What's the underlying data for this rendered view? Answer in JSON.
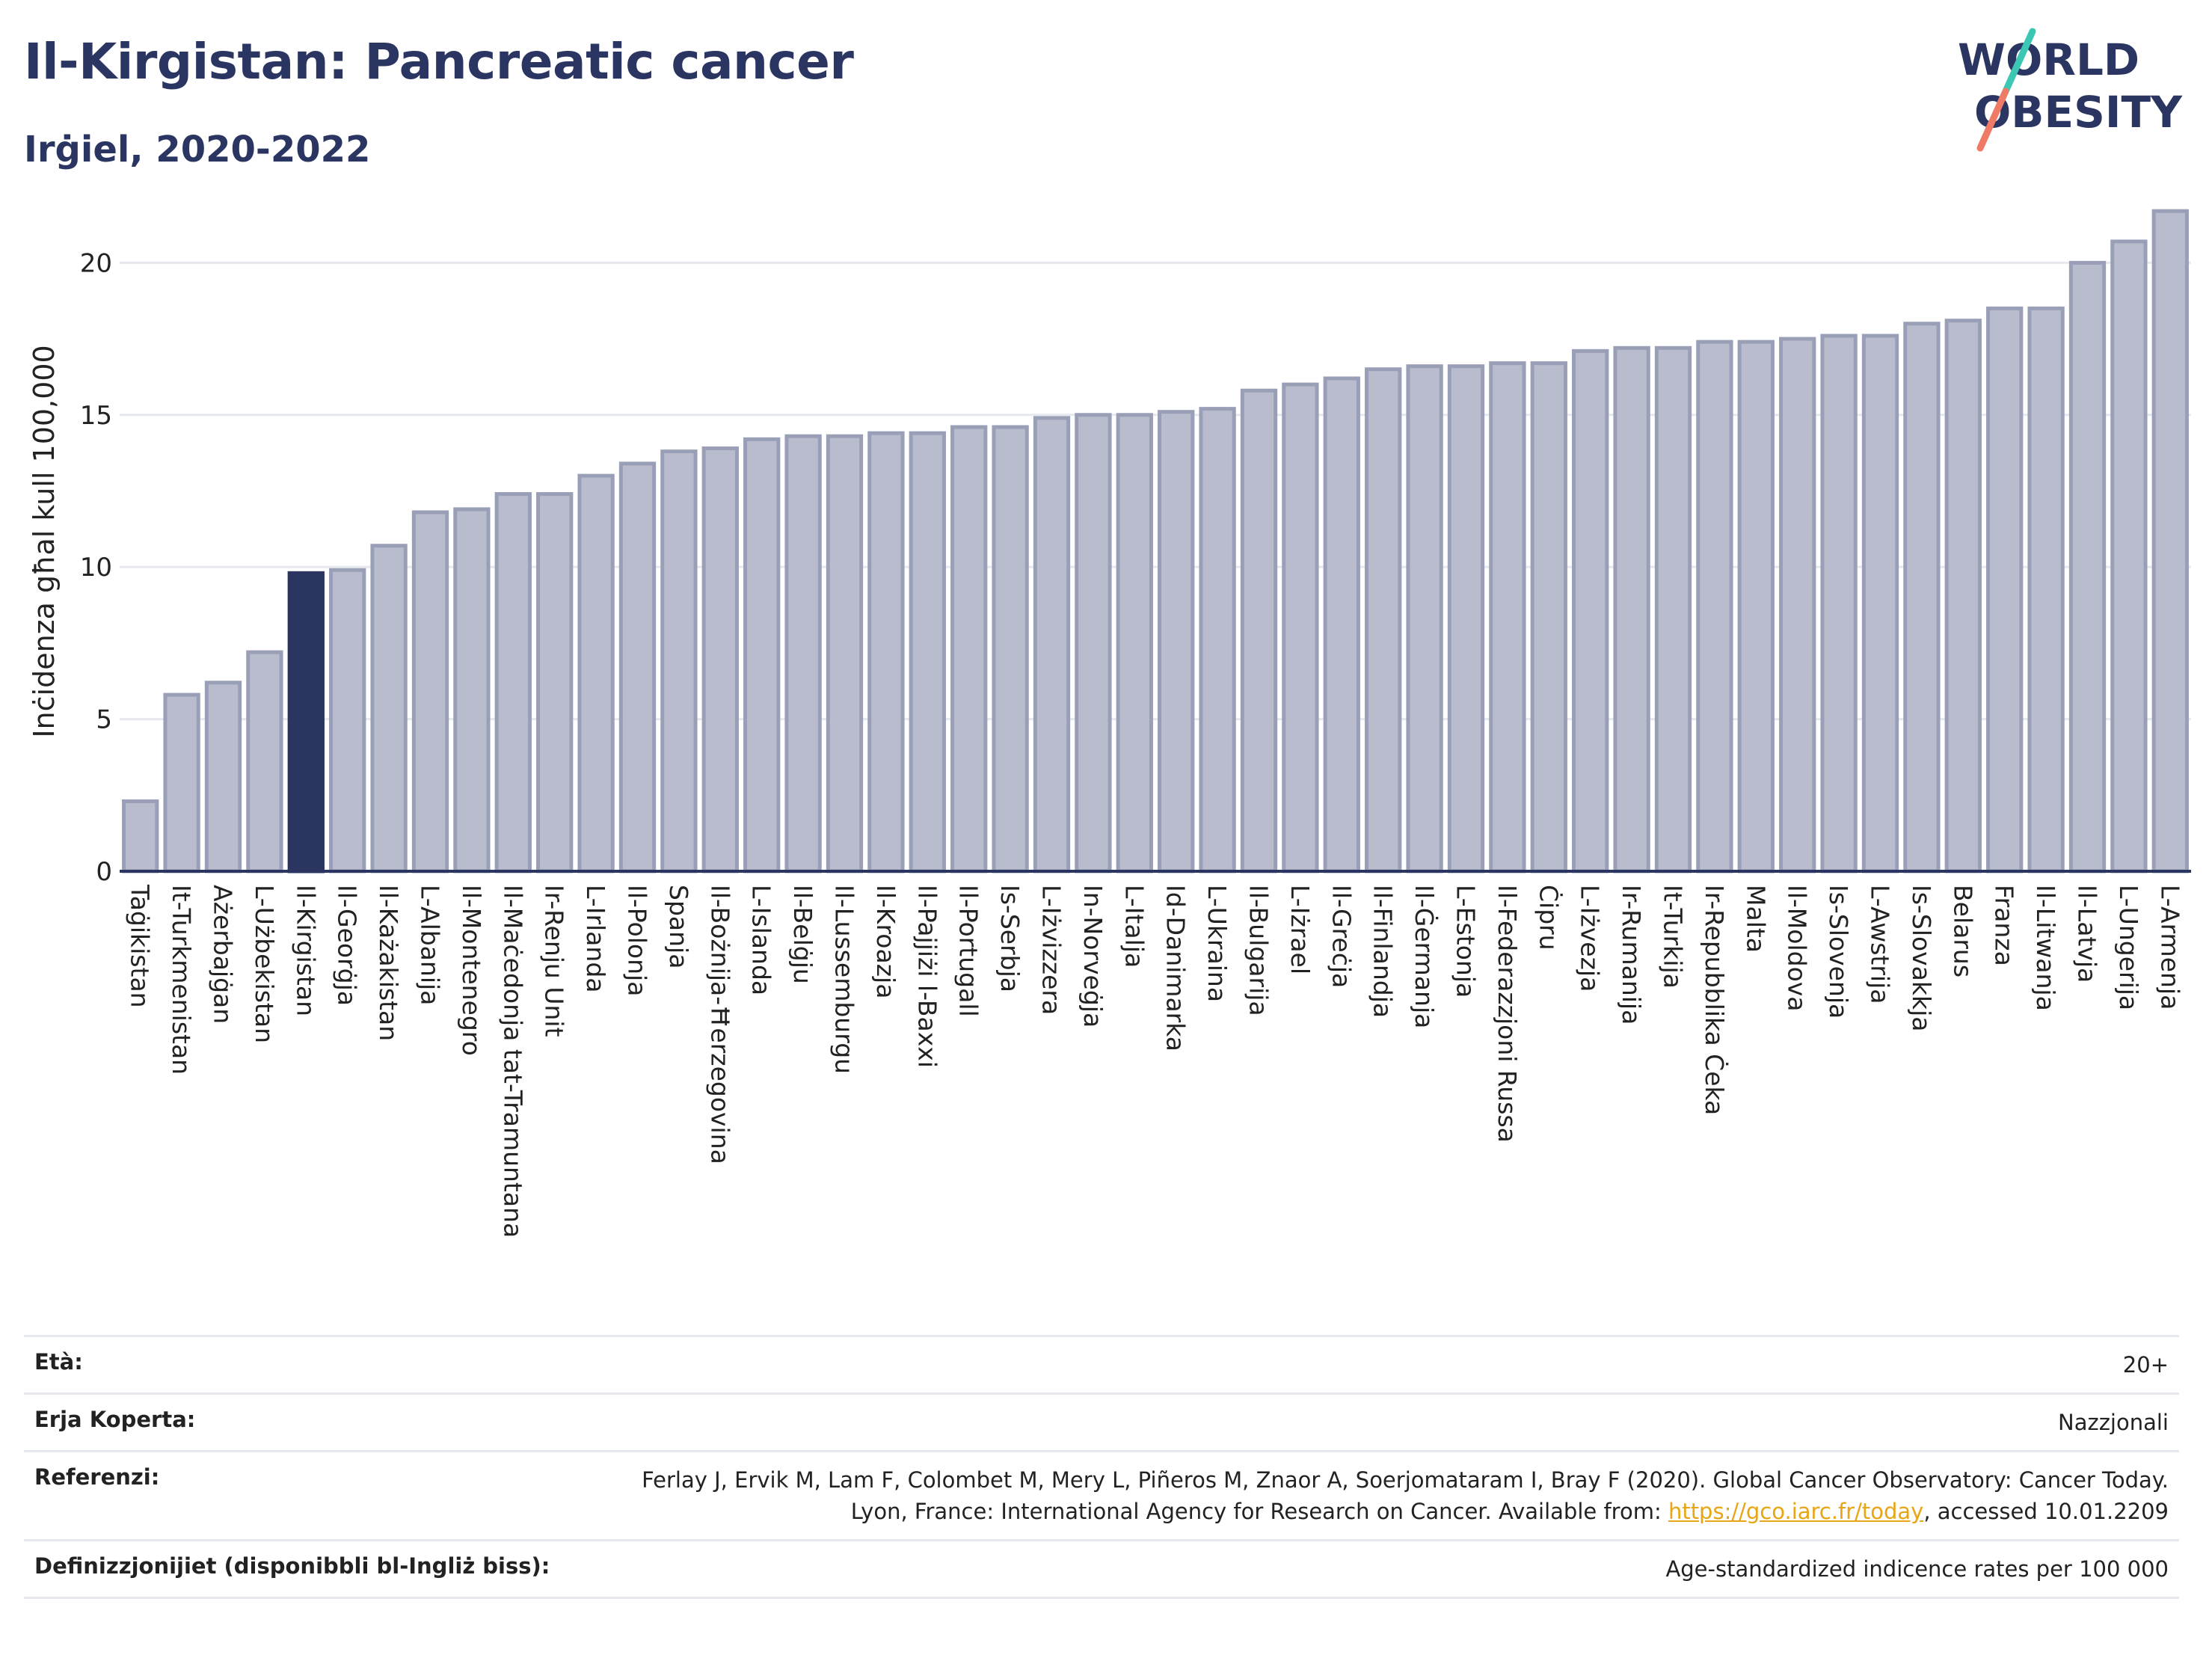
{
  "header": {
    "title": "Il-Kirgistan: Pancreatic cancer",
    "subtitle": "Irġiel, 2020-2022"
  },
  "logo": {
    "line1": "WORLD",
    "line2": "OBESITY"
  },
  "colors": {
    "highlight_bar": "#2a3561",
    "bar_fill": "#b9bccc",
    "bar_stroke": "#9a9fb8",
    "gridline": "#e6e8ef",
    "accent_teal": "#3cc7b4",
    "accent_coral": "#ef7b67",
    "link": "#e8a516"
  },
  "chart_data": {
    "type": "bar",
    "ylabel": "Inċidenza għal kull 100,000",
    "xlabel": "",
    "ylim": [
      0,
      22
    ],
    "yticks": [
      0,
      5,
      10,
      15,
      20
    ],
    "grid": true,
    "highlight": "Il-Kirgistan",
    "categories": [
      "Taġikistan",
      "It-Turkmenistan",
      "Ażerbajġan",
      "L-Użbekistan",
      "Il-Kirgistan",
      "Il-Georġja",
      "Il-Każakistan",
      "L-Albanija",
      "Il-Montenegro",
      "Il-Maċedonja tat-Tramuntana",
      "Ir-Renju Unit",
      "L-Irlanda",
      "Il-Polonja",
      "Spanja",
      "Il-Bożnija-Ħerzegovina",
      "L-Islanda",
      "Il-Belġju",
      "Il-Lussemburgu",
      "Il-Kroazja",
      "Il-Pajjiżi l-Baxxi",
      "Il-Portugall",
      "Is-Serbja",
      "L-Iżvizzera",
      "In-Norveġja",
      "L-Italja",
      "Id-Danimarka",
      "L-Ukraina",
      "Il-Bulgarija",
      "L-Iżrael",
      "Il-Greċja",
      "Il-Finlandja",
      "Il-Ġermanja",
      "L-Estonja",
      "Il-Federazzjoni Russa",
      "Ċipru",
      "L-Iżvezja",
      "Ir-Rumanija",
      "It-Turkija",
      "Ir-Repubblika Ċeka",
      "Malta",
      "Il-Moldova",
      "Is-Slovenja",
      "L-Awstrija",
      "Is-Slovakkja",
      "Belarus",
      "Franza",
      "Il-Litwanja",
      "Il-Latvja",
      "L-Ungerija",
      "L-Armenja"
    ],
    "values": [
      2.3,
      5.8,
      6.2,
      7.2,
      9.8,
      9.9,
      10.7,
      11.8,
      11.9,
      12.4,
      12.4,
      13.0,
      13.4,
      13.8,
      13.9,
      14.2,
      14.3,
      14.3,
      14.4,
      14.4,
      14.6,
      14.6,
      14.9,
      15.0,
      15.0,
      15.1,
      15.2,
      15.8,
      16.0,
      16.2,
      16.5,
      16.6,
      16.6,
      16.7,
      16.7,
      17.1,
      17.2,
      17.2,
      17.4,
      17.4,
      17.5,
      17.6,
      17.6,
      18.0,
      18.1,
      18.5,
      18.5,
      20.0,
      20.7,
      21.7
    ]
  },
  "info": {
    "age_label": "Età:",
    "age_value": "20+",
    "coverage_label": "Erja Koperta:",
    "coverage_value": "Nazzjonali",
    "references_label": "Referenzi:",
    "references_text": "Ferlay J, Ervik M, Lam F, Colombet M, Mery L, Piñeros M, Znaor A, Soerjomataram I, Bray F (2020). Global Cancer Observatory: Cancer Today. Lyon, France: International Agency for Research on Cancer. Available from: ",
    "references_link": "https://gco.iarc.fr/today",
    "references_suffix": ", accessed 10.01.2209",
    "definitions_label": "Definizzjonijiet (disponibbli bl-Ingliż biss):",
    "definitions_value": "Age-standardized indicence rates per 100 000"
  }
}
